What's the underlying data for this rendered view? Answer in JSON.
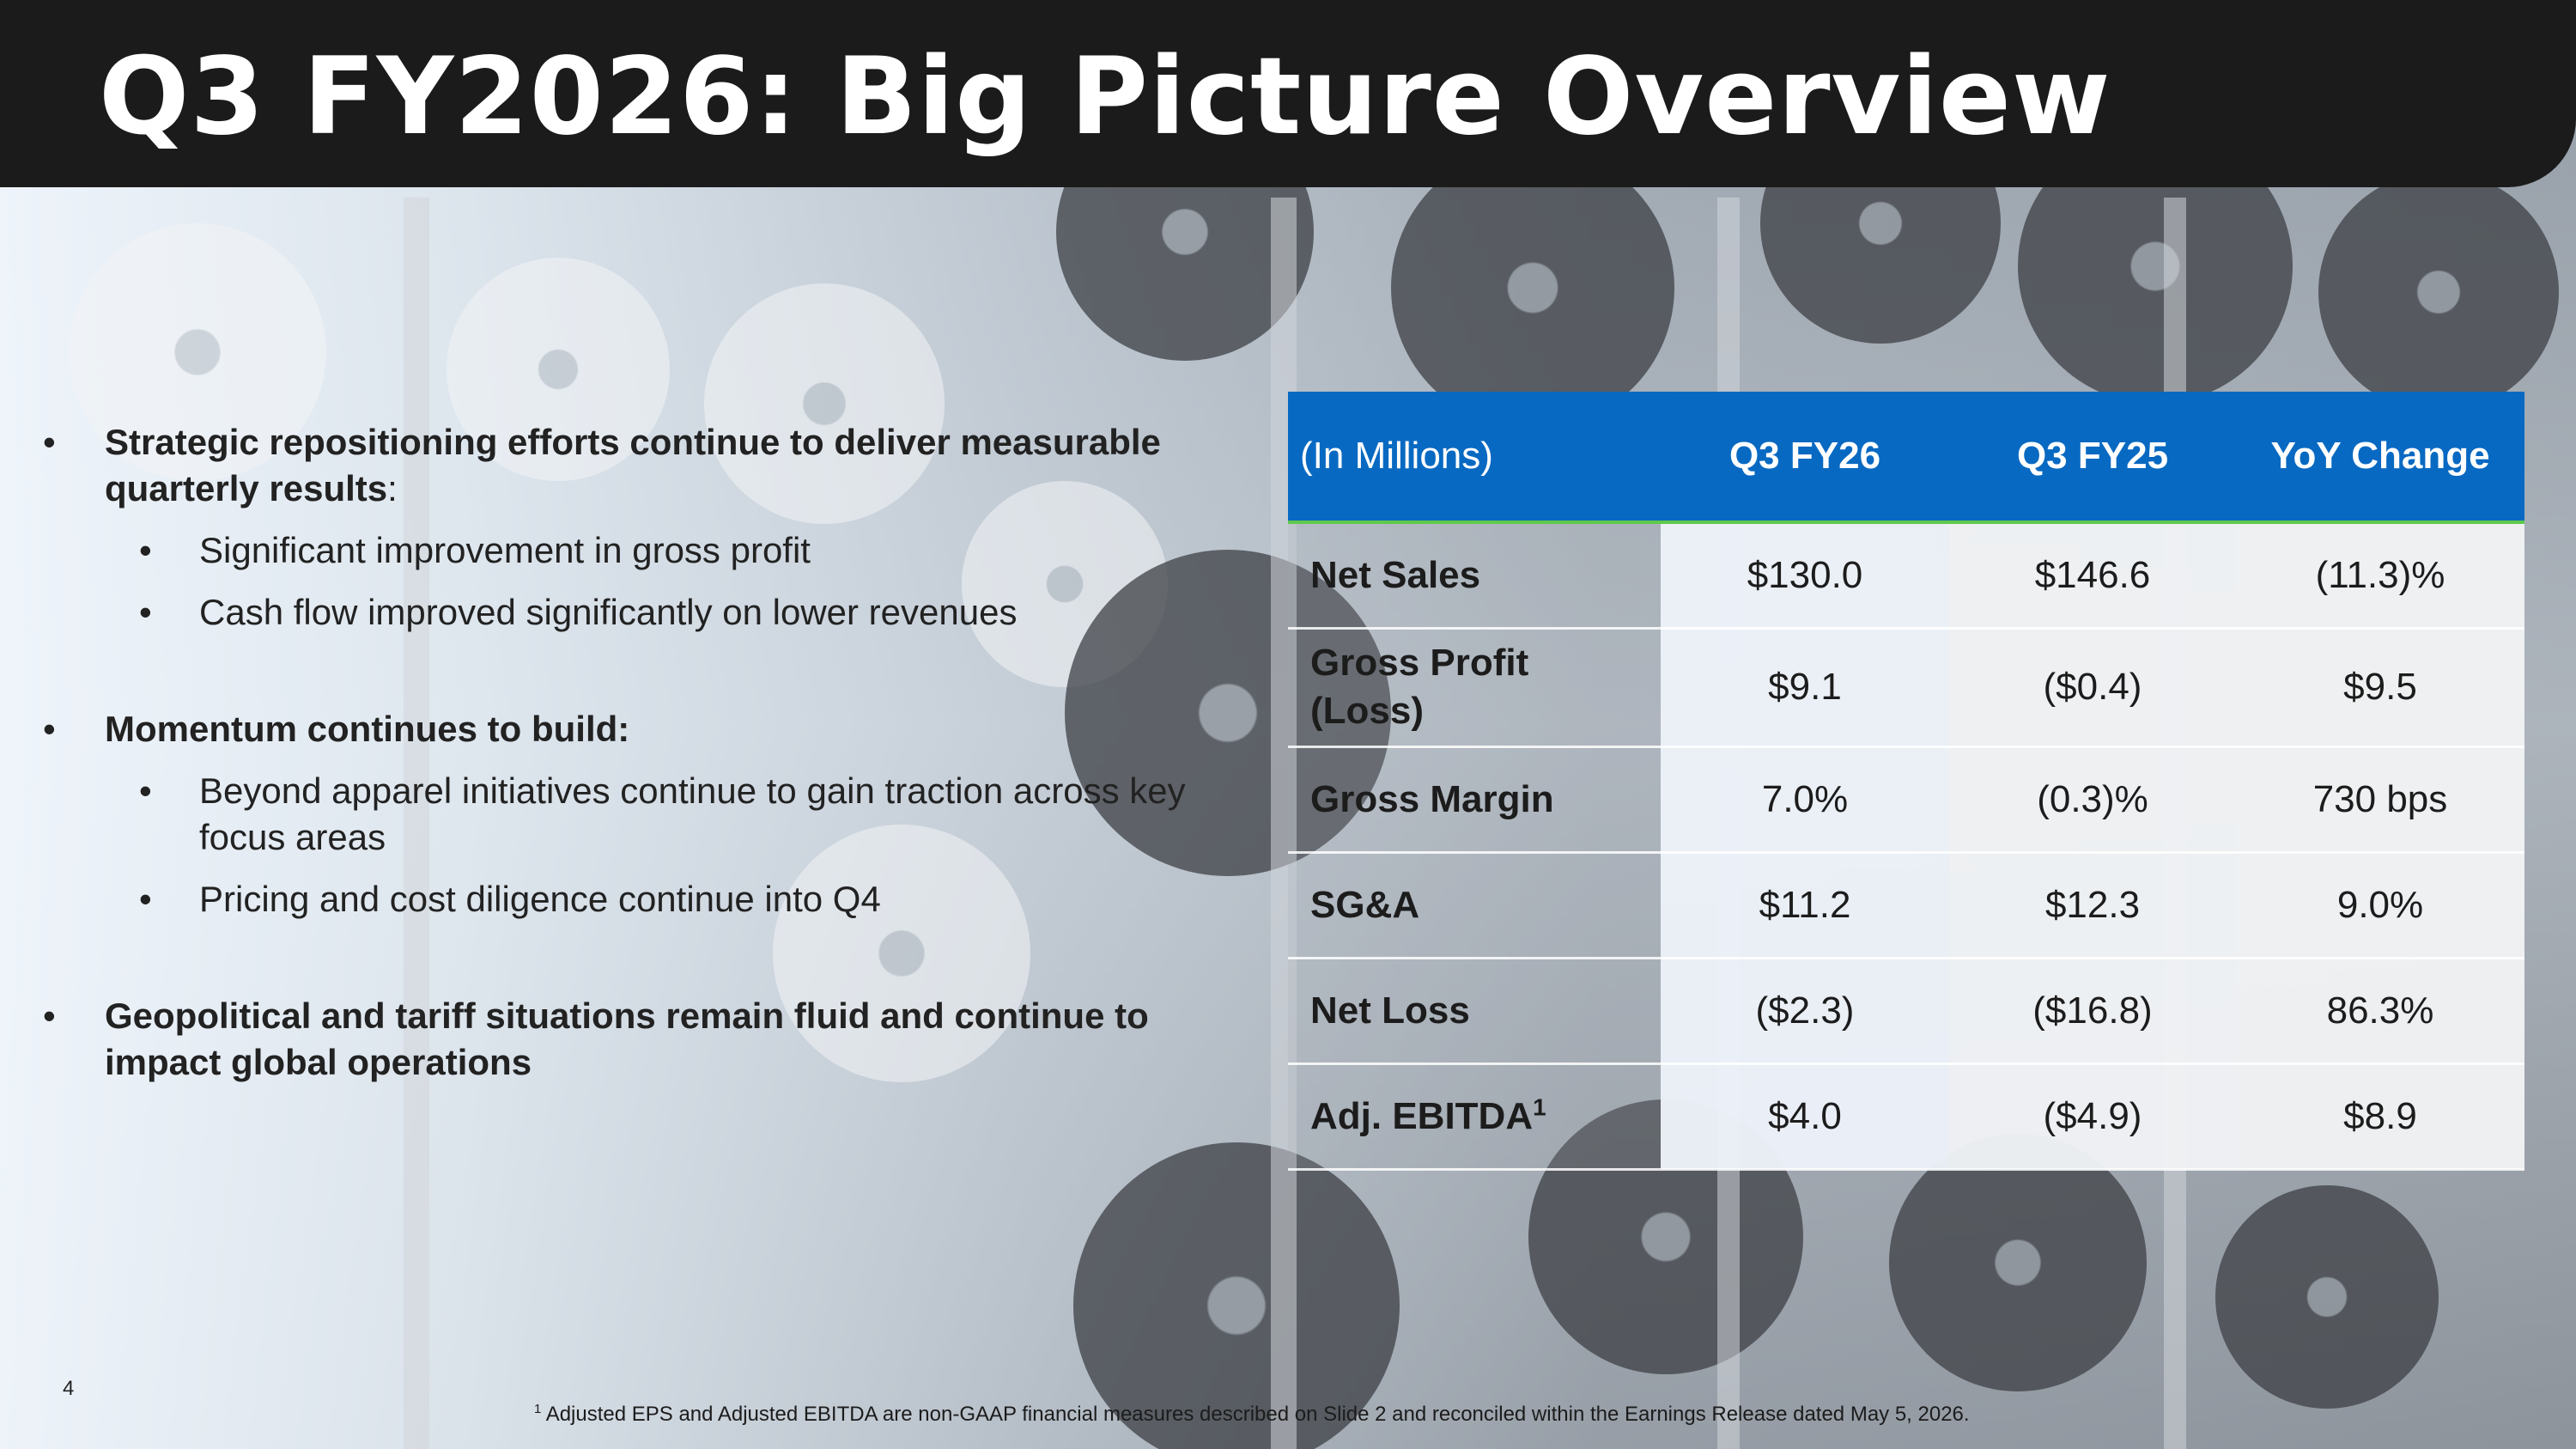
{
  "slide": {
    "title": "Q3 FY2026: Big Picture Overview",
    "page_number": "4"
  },
  "bullets": [
    {
      "bold": "Strategic repositioning efforts continue to deliver measurable quarterly results",
      "tail": ":",
      "sub": [
        "Significant improvement in gross profit",
        "Cash flow improved significantly on lower revenues"
      ]
    },
    {
      "bold": "Momentum continues to build:",
      "tail": "",
      "sub": [
        "Beyond apparel initiatives continue to gain traction across key focus areas",
        "Pricing and cost diligence continue into Q4"
      ]
    },
    {
      "bold": "Geopolitical and tariff situations remain fluid and continue to impact global operations",
      "tail": "",
      "sub": []
    }
  ],
  "bullet_glyph": "•",
  "table": {
    "header": {
      "label": "(In Millions)",
      "col1": "Q3 FY26",
      "col2": "Q3 FY25",
      "col3": "YoY Change"
    },
    "rows": [
      {
        "label": "Net Sales",
        "q3fy26": "$130.0",
        "q3fy25": "$146.6",
        "yoy": "(11.3)%"
      },
      {
        "label": "Gross Profit (Loss)",
        "q3fy26": "$9.1",
        "q3fy25": "($0.4)",
        "yoy": "$9.5"
      },
      {
        "label": "Gross Margin",
        "q3fy26": "7.0%",
        "q3fy25": "(0.3)%",
        "yoy": "730 bps"
      },
      {
        "label": "SG&A",
        "q3fy26": "$11.2",
        "q3fy25": "$12.3",
        "yoy": "9.0%"
      },
      {
        "label": "Net Loss",
        "q3fy26": "($2.3)",
        "q3fy25": "($16.8)",
        "yoy": "86.3%"
      },
      {
        "label": "Adj. EBITDA",
        "label_sup": "1",
        "q3fy26": "$4.0",
        "q3fy25": "($4.9)",
        "yoy": "$8.9"
      }
    ]
  },
  "footnote": {
    "marker": "1",
    "text": "Adjusted EPS and Adjusted EBITDA are non-GAAP financial measures described on Slide 2 and reconciled within the Earnings Release dated May 5, 2026."
  },
  "colors": {
    "header_bg": "#1b1b1b",
    "table_header_bg": "#0869c2",
    "table_header_rule": "#5fc94c"
  }
}
